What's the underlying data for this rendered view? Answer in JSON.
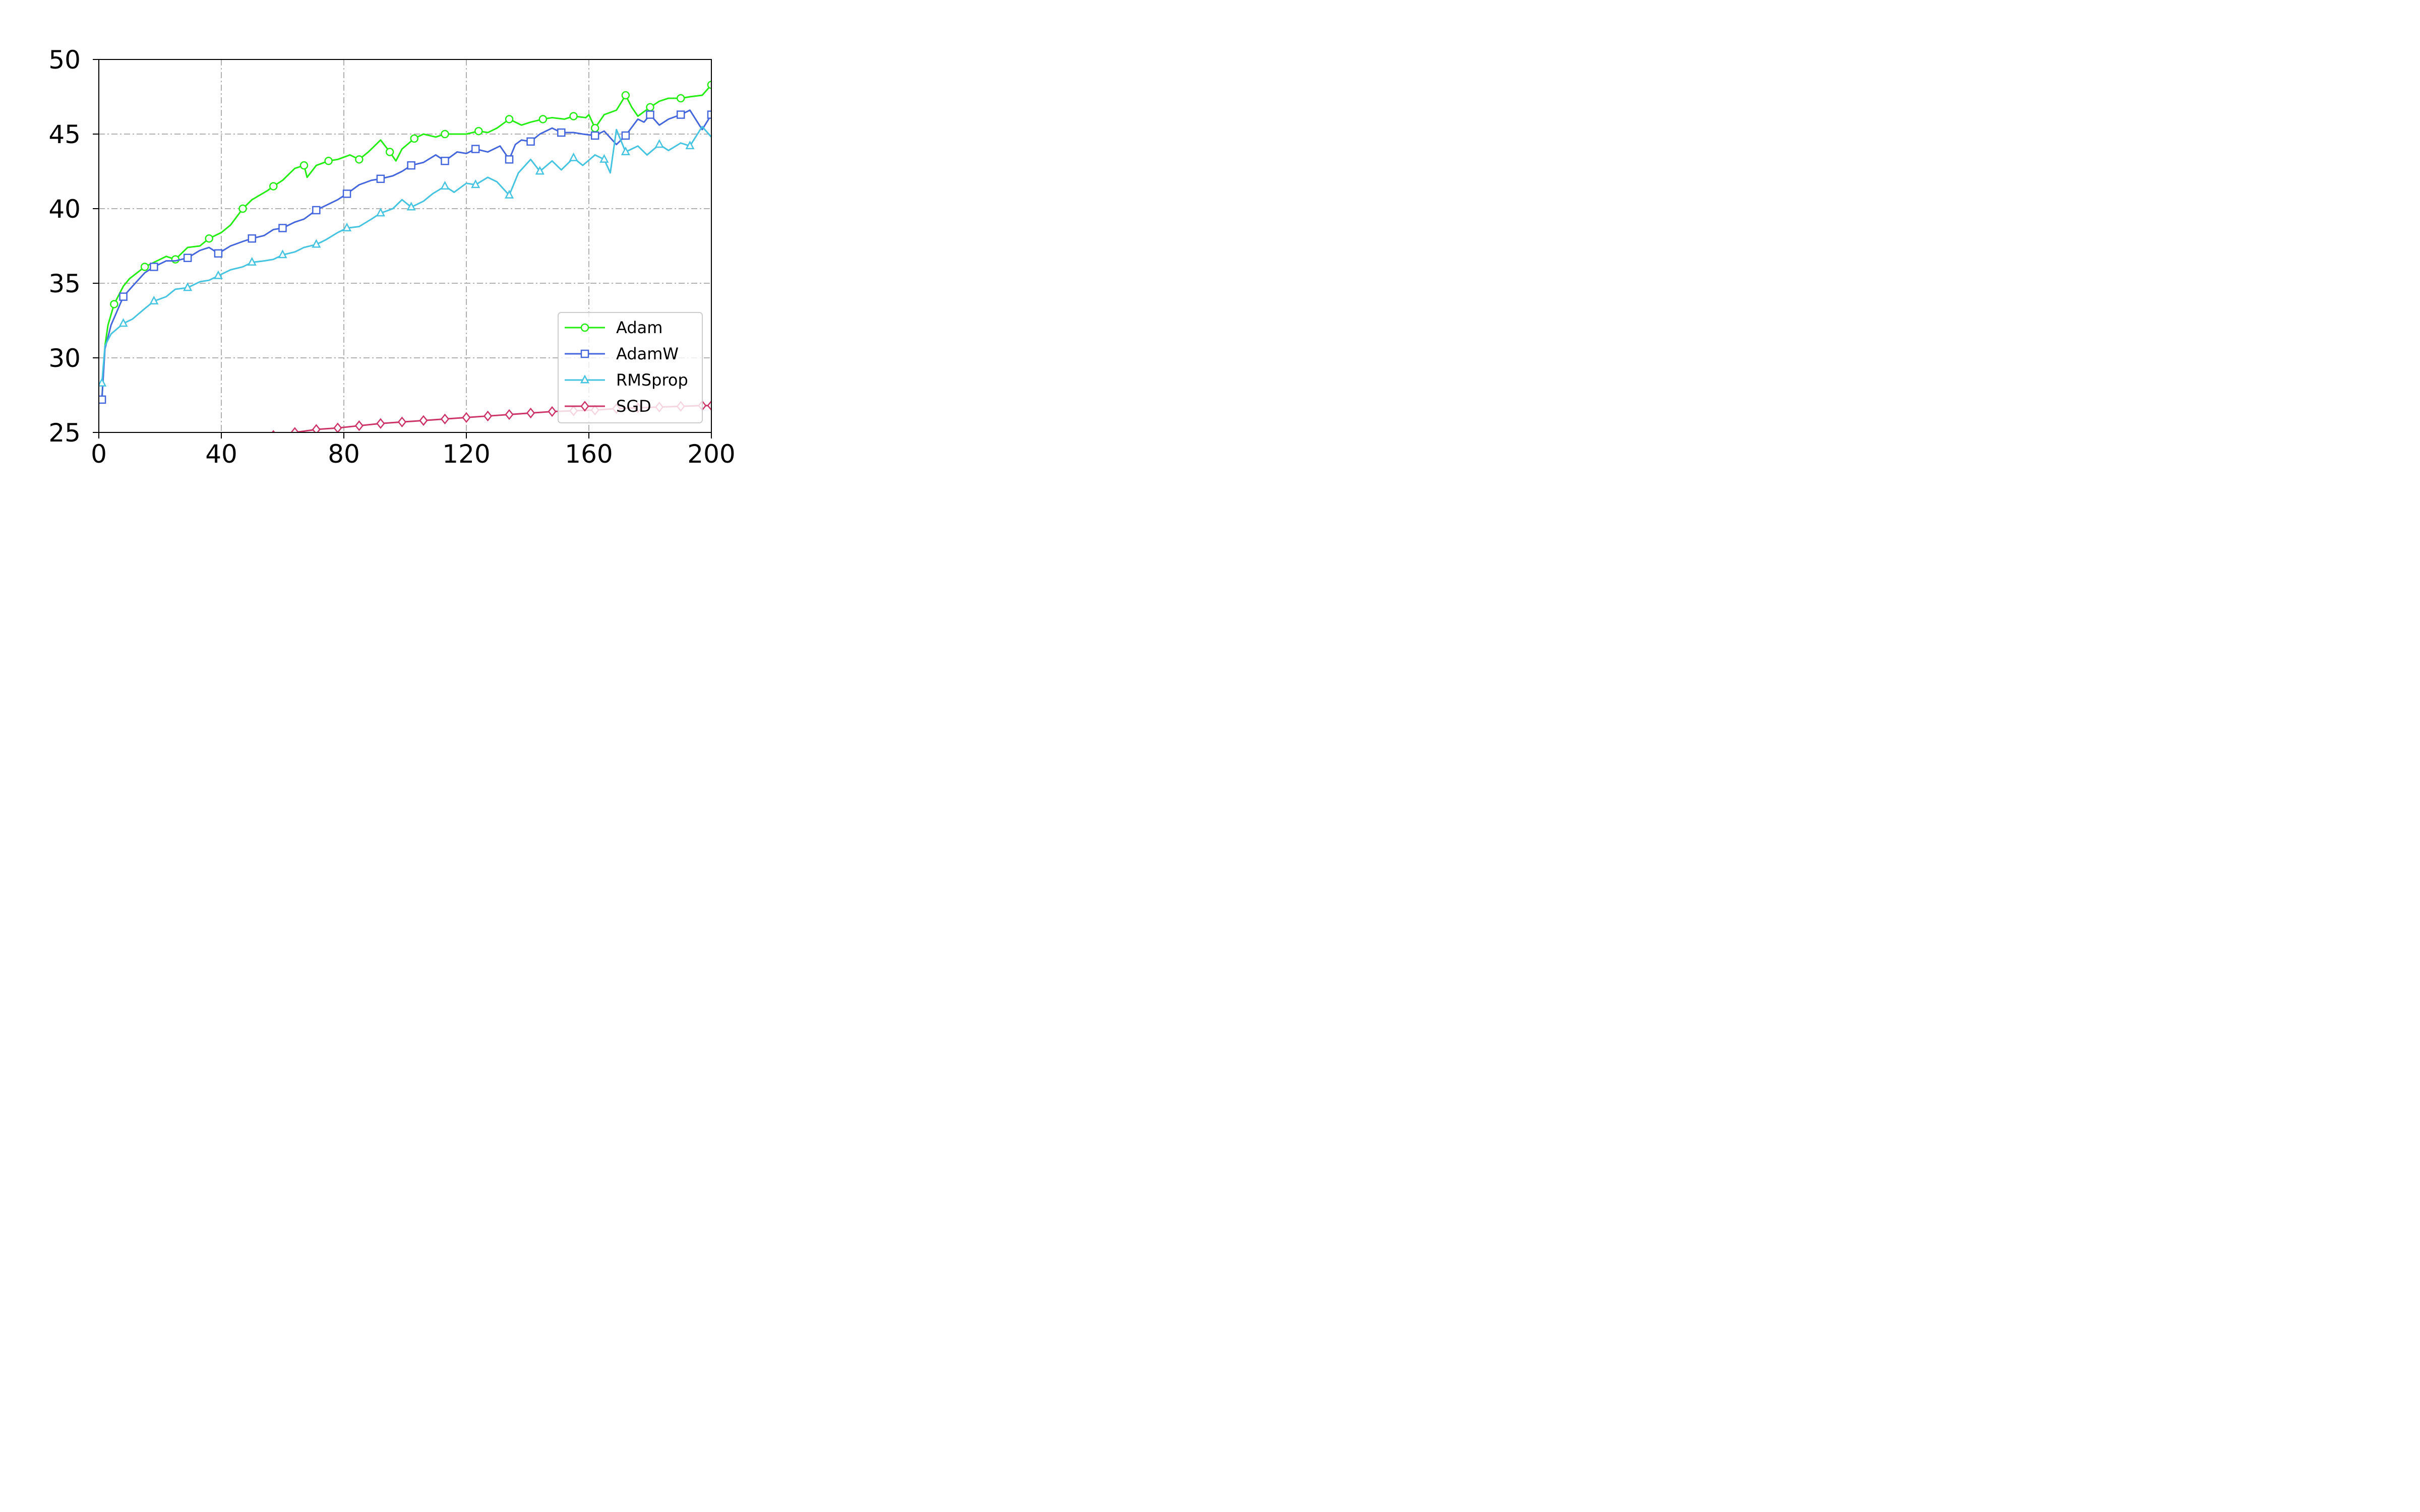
{
  "chart_data": {
    "type": "line",
    "title": "",
    "xlabel": "",
    "ylabel": "",
    "xlim": [
      0,
      200
    ],
    "ylim": [
      25,
      50
    ],
    "xticks": [
      0,
      40,
      80,
      120,
      160,
      200
    ],
    "yticks": [
      25,
      30,
      35,
      40,
      45,
      50
    ],
    "grid": true,
    "legend_position": "lower-right",
    "series": [
      {
        "name": "Adam",
        "color": "#22ee11",
        "marker": "circle",
        "x": [
          1,
          2,
          3,
          5,
          8,
          10,
          15,
          18,
          22,
          25,
          29,
          33,
          36,
          40,
          43,
          47,
          50,
          55,
          57,
          60,
          64,
          67,
          68,
          71,
          75,
          78,
          82,
          85,
          88,
          92,
          95,
          97,
          99,
          103,
          106,
          110,
          113,
          117,
          120,
          124,
          127,
          130,
          134,
          138,
          141,
          145,
          148,
          152,
          155,
          159,
          160,
          162,
          165,
          169,
          172,
          174,
          176,
          180,
          183,
          186,
          190,
          193,
          197,
          200
        ],
        "y": [
          27.2,
          30.8,
          32.2,
          33.6,
          34.8,
          35.3,
          36.1,
          36.4,
          36.8,
          36.6,
          37.4,
          37.5,
          38.0,
          38.4,
          38.9,
          40.0,
          40.6,
          41.2,
          41.5,
          41.9,
          42.7,
          42.9,
          42.1,
          42.9,
          43.2,
          43.3,
          43.6,
          43.3,
          43.8,
          44.6,
          43.8,
          43.2,
          44.0,
          44.7,
          45.0,
          44.8,
          45.0,
          45.0,
          45.0,
          45.2,
          45.1,
          45.4,
          46.0,
          45.6,
          45.8,
          46.0,
          46.1,
          46.0,
          46.2,
          46.1,
          46.3,
          45.4,
          46.3,
          46.6,
          47.6,
          46.8,
          46.2,
          46.8,
          47.2,
          47.4,
          47.4,
          47.5,
          47.6,
          48.3
        ]
      },
      {
        "name": "AdamW",
        "color": "#4466dd",
        "marker": "square",
        "x": [
          1,
          2,
          4,
          8,
          11,
          15,
          18,
          22,
          25,
          29,
          33,
          36,
          39,
          43,
          47,
          50,
          54,
          57,
          60,
          64,
          67,
          71,
          74,
          78,
          81,
          85,
          89,
          92,
          96,
          99,
          102,
          106,
          110,
          113,
          117,
          120,
          123,
          127,
          131,
          134,
          136,
          138,
          141,
          144,
          148,
          151,
          155,
          158,
          162,
          165,
          169,
          172,
          176,
          178,
          180,
          183,
          186,
          190,
          193,
          197,
          200
        ],
        "y": [
          27.2,
          30.6,
          32.2,
          34.1,
          34.8,
          35.7,
          36.1,
          36.5,
          36.5,
          36.7,
          37.2,
          37.4,
          37.0,
          37.5,
          37.8,
          38.0,
          38.2,
          38.6,
          38.7,
          39.1,
          39.3,
          39.9,
          40.2,
          40.6,
          41.0,
          41.6,
          41.9,
          42.0,
          42.2,
          42.5,
          42.9,
          43.1,
          43.6,
          43.2,
          43.8,
          43.7,
          44.0,
          43.8,
          44.2,
          43.3,
          44.3,
          44.6,
          44.5,
          45.0,
          45.4,
          45.1,
          45.1,
          45.0,
          44.9,
          45.2,
          44.3,
          44.9,
          46.0,
          45.8,
          46.3,
          45.6,
          46.0,
          46.3,
          46.6,
          45.3,
          46.3
        ]
      },
      {
        "name": "RMSprop",
        "color": "#44c4e0",
        "marker": "triangle",
        "x": [
          1,
          2,
          4,
          8,
          11,
          15,
          18,
          22,
          25,
          29,
          33,
          36,
          39,
          43,
          47,
          50,
          54,
          57,
          60,
          64,
          67,
          71,
          74,
          78,
          81,
          85,
          89,
          92,
          96,
          99,
          102,
          106,
          109,
          113,
          116,
          120,
          123,
          127,
          130,
          134,
          137,
          141,
          144,
          148,
          151,
          155,
          158,
          162,
          165,
          167,
          169,
          172,
          176,
          179,
          183,
          186,
          190,
          193,
          197,
          200
        ],
        "y": [
          28.3,
          30.8,
          31.6,
          32.3,
          32.6,
          33.3,
          33.8,
          34.1,
          34.6,
          34.7,
          35.1,
          35.2,
          35.5,
          35.9,
          36.1,
          36.4,
          36.5,
          36.6,
          36.9,
          37.1,
          37.4,
          37.6,
          37.9,
          38.4,
          38.7,
          38.8,
          39.3,
          39.7,
          40.0,
          40.6,
          40.1,
          40.5,
          41.0,
          41.5,
          41.1,
          41.7,
          41.6,
          42.1,
          41.8,
          40.9,
          42.4,
          43.3,
          42.5,
          43.2,
          42.6,
          43.4,
          42.9,
          43.6,
          43.3,
          42.4,
          45.3,
          43.8,
          44.2,
          43.6,
          44.3,
          43.9,
          44.4,
          44.2,
          45.5,
          44.8
        ]
      },
      {
        "name": "SGD",
        "color": "#cc3366",
        "marker": "diamond",
        "x": [
          57,
          64,
          71,
          78,
          85,
          92,
          99,
          106,
          113,
          120,
          127,
          134,
          141,
          148,
          155,
          162,
          169,
          176,
          183,
          190,
          197,
          200
        ],
        "y": [
          24.8,
          25.0,
          25.2,
          25.3,
          25.45,
          25.6,
          25.7,
          25.8,
          25.9,
          26.0,
          26.1,
          26.2,
          26.3,
          26.4,
          26.45,
          26.5,
          26.6,
          26.65,
          26.7,
          26.75,
          26.8,
          26.8
        ]
      }
    ]
  }
}
